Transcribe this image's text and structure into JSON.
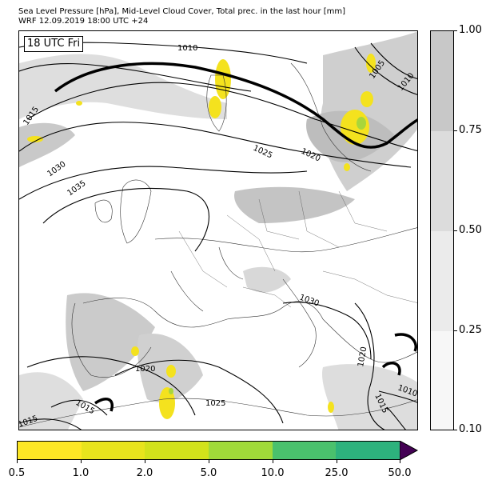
{
  "header": {
    "title_line1": "Sea Level Pressure [hPa], Mid-Level Cloud Cover, Total prec. in the last hour [mm]",
    "title_line2": "WRF 12.09.2019 18:00 UTC +24"
  },
  "map": {
    "time_label": "18 UTC Fri",
    "isobar_labels": [
      "1010",
      "1005",
      "1010",
      "1015",
      "1030",
      "1035",
      "1025",
      "1020",
      "1030",
      "1020",
      "1025",
      "1020",
      "1015",
      "1010",
      "1015",
      "1015"
    ]
  },
  "cloud_colorbar": {
    "ticks": [
      "1.00",
      "0.75",
      "0.50",
      "0.25",
      "0.10"
    ],
    "colors": [
      "#c8c8c8",
      "#dcdcdc",
      "#ebebeb",
      "#f7f7f7"
    ]
  },
  "precip_colorbar": {
    "ticks": [
      "0.5",
      "1.0",
      "2.0",
      "5.0",
      "10.0",
      "25.0",
      "50.0"
    ],
    "colors": [
      "#fde725",
      "#e8e41d",
      "#d2e21b",
      "#a0da39",
      "#4ac16d",
      "#2db27d",
      "#3b528b"
    ],
    "extend_color": "#440154"
  }
}
